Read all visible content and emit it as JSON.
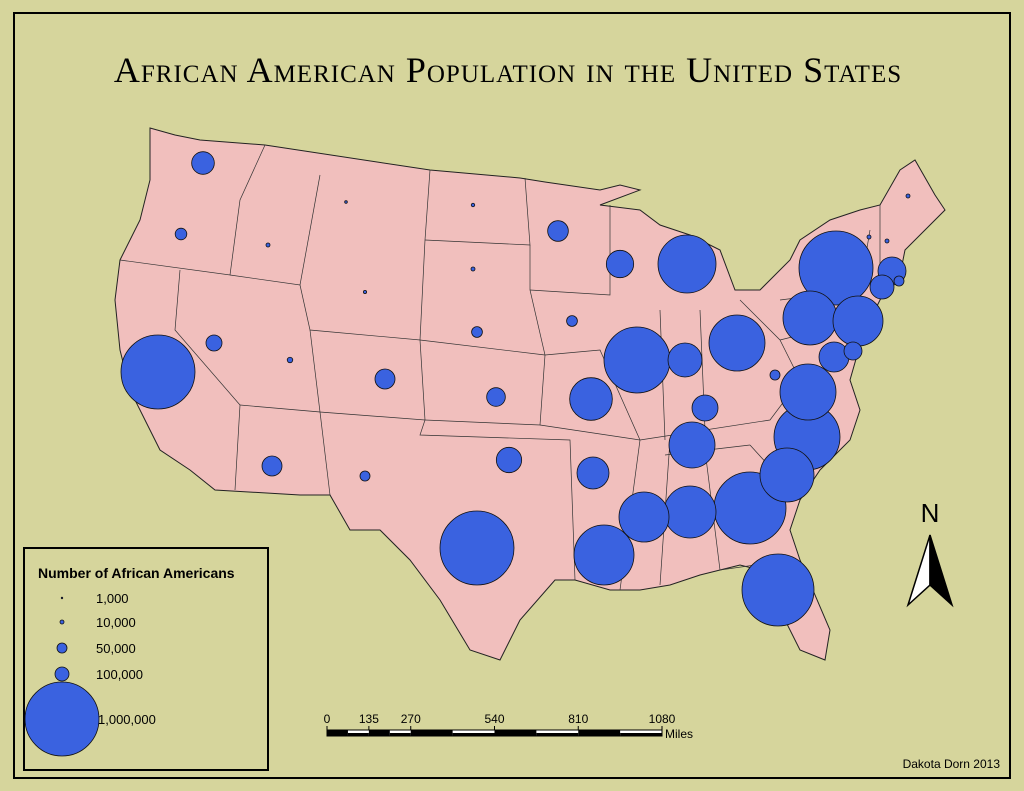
{
  "title": "African American Population in the United States",
  "legend": {
    "title": "Number of African Americans",
    "items": [
      {
        "value": 1000,
        "label": "1,000"
      },
      {
        "value": 10000,
        "label": "10,000"
      },
      {
        "value": 50000,
        "label": "50,000"
      },
      {
        "value": 100000,
        "label": "100,000"
      },
      {
        "value": 1000000,
        "label": "1,000,000"
      }
    ]
  },
  "bubbles": {
    "values": [
      230000,
      70000,
      5000,
      10000,
      8000,
      10000,
      7000,
      200000,
      300000,
      760000,
      1000000,
      130000,
      20000,
      190000,
      60000,
      60000,
      170000,
      530000,
      880000,
      400000,
      730000,
      280000,
      580000,
      190000,
      50000,
      270000,
      370000,
      1000000,
      790000,
      640000,
      670000,
      970000,
      970000,
      700000,
      880000,
      730000,
      50000,
      700000,
      1000000,
      640000,
      340000,
      160000,
      310000,
      250000,
      50000,
      10000,
      10000,
      10000
    ]
  },
  "scale_bar": {
    "ticks": [
      0,
      135,
      270,
      540,
      810,
      1080
    ],
    "unit": "Miles"
  },
  "north_arrow": "N",
  "credit": "Dakota Dorn 2013"
}
